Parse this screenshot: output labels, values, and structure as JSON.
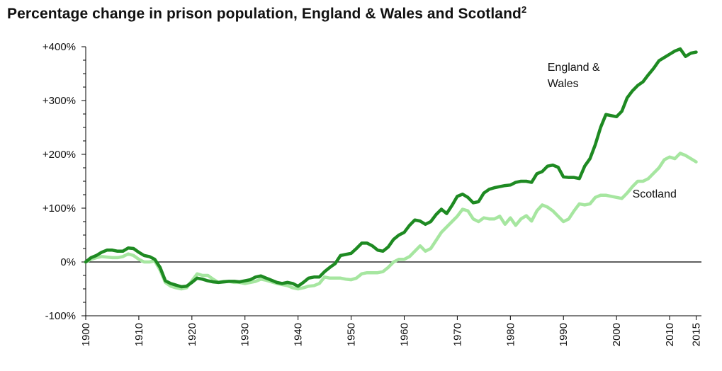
{
  "chart_data": {
    "type": "line",
    "title": "Percentage change in prison population, England & Wales and Scotland",
    "title_superscript": "2",
    "xlabel": "",
    "ylabel": "",
    "xlim": [
      1900,
      2016
    ],
    "ylim": [
      -100,
      400
    ],
    "x_ticks": [
      1900,
      1910,
      1920,
      1930,
      1940,
      1950,
      1960,
      1970,
      1980,
      1990,
      2000,
      2010,
      2015
    ],
    "y_ticks": [
      {
        "value": 400,
        "label": "+400%"
      },
      {
        "value": 300,
        "label": "+300%"
      },
      {
        "value": 200,
        "label": "+200%"
      },
      {
        "value": 100,
        "label": "+100%"
      },
      {
        "value": 0,
        "label": "0%"
      },
      {
        "value": -100,
        "label": "-100%"
      }
    ],
    "grid": false,
    "legend": "inline labels",
    "series": [
      {
        "name": "Scotland",
        "label_lines": [
          "Scotland"
        ],
        "label_at": [
          2003,
          120
        ],
        "color": "#a6e6a0",
        "points": [
          [
            1900,
            0
          ],
          [
            1901,
            5
          ],
          [
            1902,
            8
          ],
          [
            1903,
            10
          ],
          [
            1904,
            9
          ],
          [
            1905,
            8
          ],
          [
            1906,
            8
          ],
          [
            1907,
            10
          ],
          [
            1908,
            15
          ],
          [
            1909,
            12
          ],
          [
            1910,
            5
          ],
          [
            1911,
            0
          ],
          [
            1912,
            0
          ],
          [
            1913,
            2
          ],
          [
            1914,
            -15
          ],
          [
            1915,
            -38
          ],
          [
            1916,
            -45
          ],
          [
            1917,
            -48
          ],
          [
            1918,
            -50
          ],
          [
            1919,
            -48
          ],
          [
            1920,
            -35
          ],
          [
            1921,
            -22
          ],
          [
            1922,
            -25
          ],
          [
            1923,
            -25
          ],
          [
            1924,
            -32
          ],
          [
            1925,
            -38
          ],
          [
            1926,
            -36
          ],
          [
            1927,
            -36
          ],
          [
            1928,
            -38
          ],
          [
            1929,
            -38
          ],
          [
            1930,
            -40
          ],
          [
            1931,
            -38
          ],
          [
            1932,
            -36
          ],
          [
            1933,
            -32
          ],
          [
            1934,
            -34
          ],
          [
            1935,
            -37
          ],
          [
            1936,
            -40
          ],
          [
            1937,
            -42
          ],
          [
            1938,
            -44
          ],
          [
            1939,
            -48
          ],
          [
            1940,
            -50
          ],
          [
            1941,
            -48
          ],
          [
            1942,
            -45
          ],
          [
            1943,
            -44
          ],
          [
            1944,
            -40
          ],
          [
            1945,
            -28
          ],
          [
            1946,
            -30
          ],
          [
            1947,
            -30
          ],
          [
            1948,
            -30
          ],
          [
            1949,
            -32
          ],
          [
            1950,
            -33
          ],
          [
            1951,
            -30
          ],
          [
            1952,
            -22
          ],
          [
            1953,
            -20
          ],
          [
            1954,
            -20
          ],
          [
            1955,
            -20
          ],
          [
            1956,
            -18
          ],
          [
            1957,
            -10
          ],
          [
            1958,
            0
          ],
          [
            1959,
            5
          ],
          [
            1960,
            5
          ],
          [
            1961,
            10
          ],
          [
            1962,
            20
          ],
          [
            1963,
            30
          ],
          [
            1964,
            20
          ],
          [
            1965,
            25
          ],
          [
            1966,
            40
          ],
          [
            1967,
            55
          ],
          [
            1968,
            65
          ],
          [
            1969,
            75
          ],
          [
            1970,
            85
          ],
          [
            1971,
            98
          ],
          [
            1972,
            95
          ],
          [
            1973,
            80
          ],
          [
            1974,
            75
          ],
          [
            1975,
            82
          ],
          [
            1976,
            80
          ],
          [
            1977,
            80
          ],
          [
            1978,
            85
          ],
          [
            1979,
            70
          ],
          [
            1980,
            82
          ],
          [
            1981,
            68
          ],
          [
            1982,
            80
          ],
          [
            1983,
            86
          ],
          [
            1984,
            76
          ],
          [
            1985,
            95
          ],
          [
            1986,
            106
          ],
          [
            1987,
            102
          ],
          [
            1988,
            95
          ],
          [
            1989,
            85
          ],
          [
            1990,
            75
          ],
          [
            1991,
            80
          ],
          [
            1992,
            95
          ],
          [
            1993,
            108
          ],
          [
            1994,
            106
          ],
          [
            1995,
            108
          ],
          [
            1996,
            120
          ],
          [
            1997,
            124
          ],
          [
            1998,
            124
          ],
          [
            1999,
            122
          ],
          [
            2000,
            120
          ],
          [
            2001,
            118
          ],
          [
            2002,
            128
          ],
          [
            2003,
            140
          ],
          [
            2004,
            150
          ],
          [
            2005,
            150
          ],
          [
            2006,
            155
          ],
          [
            2007,
            165
          ],
          [
            2008,
            175
          ],
          [
            2009,
            190
          ],
          [
            2010,
            195
          ],
          [
            2011,
            192
          ],
          [
            2012,
            202
          ],
          [
            2013,
            198
          ],
          [
            2014,
            192
          ],
          [
            2015,
            186
          ]
        ]
      },
      {
        "name": "England & Wales",
        "label_lines": [
          "England &",
          "Wales"
        ],
        "label_at": [
          1987,
          355
        ],
        "color": "#1e8a22",
        "points": [
          [
            1900,
            0
          ],
          [
            1901,
            8
          ],
          [
            1902,
            12
          ],
          [
            1903,
            18
          ],
          [
            1904,
            22
          ],
          [
            1905,
            22
          ],
          [
            1906,
            20
          ],
          [
            1907,
            20
          ],
          [
            1908,
            26
          ],
          [
            1909,
            25
          ],
          [
            1910,
            18
          ],
          [
            1911,
            12
          ],
          [
            1912,
            10
          ],
          [
            1913,
            5
          ],
          [
            1914,
            -10
          ],
          [
            1915,
            -35
          ],
          [
            1916,
            -40
          ],
          [
            1917,
            -43
          ],
          [
            1918,
            -46
          ],
          [
            1919,
            -45
          ],
          [
            1920,
            -38
          ],
          [
            1921,
            -30
          ],
          [
            1922,
            -32
          ],
          [
            1923,
            -35
          ],
          [
            1924,
            -37
          ],
          [
            1925,
            -38
          ],
          [
            1926,
            -37
          ],
          [
            1927,
            -36
          ],
          [
            1928,
            -36
          ],
          [
            1929,
            -37
          ],
          [
            1930,
            -35
          ],
          [
            1931,
            -33
          ],
          [
            1932,
            -28
          ],
          [
            1933,
            -26
          ],
          [
            1934,
            -30
          ],
          [
            1935,
            -34
          ],
          [
            1936,
            -38
          ],
          [
            1937,
            -40
          ],
          [
            1938,
            -38
          ],
          [
            1939,
            -40
          ],
          [
            1940,
            -45
          ],
          [
            1941,
            -38
          ],
          [
            1942,
            -30
          ],
          [
            1943,
            -28
          ],
          [
            1944,
            -28
          ],
          [
            1945,
            -18
          ],
          [
            1946,
            -10
          ],
          [
            1947,
            -3
          ],
          [
            1948,
            12
          ],
          [
            1949,
            14
          ],
          [
            1950,
            16
          ],
          [
            1951,
            25
          ],
          [
            1952,
            35
          ],
          [
            1953,
            35
          ],
          [
            1954,
            30
          ],
          [
            1955,
            22
          ],
          [
            1956,
            20
          ],
          [
            1957,
            28
          ],
          [
            1958,
            42
          ],
          [
            1959,
            50
          ],
          [
            1960,
            55
          ],
          [
            1961,
            68
          ],
          [
            1962,
            78
          ],
          [
            1963,
            76
          ],
          [
            1964,
            70
          ],
          [
            1965,
            75
          ],
          [
            1966,
            88
          ],
          [
            1967,
            98
          ],
          [
            1968,
            90
          ],
          [
            1969,
            105
          ],
          [
            1970,
            122
          ],
          [
            1971,
            126
          ],
          [
            1972,
            120
          ],
          [
            1973,
            110
          ],
          [
            1974,
            112
          ],
          [
            1975,
            128
          ],
          [
            1976,
            135
          ],
          [
            1977,
            138
          ],
          [
            1978,
            140
          ],
          [
            1979,
            142
          ],
          [
            1980,
            143
          ],
          [
            1981,
            148
          ],
          [
            1982,
            150
          ],
          [
            1983,
            150
          ],
          [
            1984,
            148
          ],
          [
            1985,
            164
          ],
          [
            1986,
            168
          ],
          [
            1987,
            178
          ],
          [
            1988,
            180
          ],
          [
            1989,
            176
          ],
          [
            1990,
            158
          ],
          [
            1991,
            157
          ],
          [
            1992,
            157
          ],
          [
            1993,
            155
          ],
          [
            1994,
            178
          ],
          [
            1995,
            192
          ],
          [
            1996,
            218
          ],
          [
            1997,
            250
          ],
          [
            1998,
            274
          ],
          [
            1999,
            272
          ],
          [
            2000,
            270
          ],
          [
            2001,
            280
          ],
          [
            2002,
            305
          ],
          [
            2003,
            318
          ],
          [
            2004,
            328
          ],
          [
            2005,
            335
          ],
          [
            2006,
            348
          ],
          [
            2007,
            360
          ],
          [
            2008,
            374
          ],
          [
            2009,
            380
          ],
          [
            2010,
            386
          ],
          [
            2011,
            392
          ],
          [
            2012,
            396
          ],
          [
            2013,
            382
          ],
          [
            2014,
            388
          ],
          [
            2015,
            390
          ]
        ]
      }
    ]
  }
}
